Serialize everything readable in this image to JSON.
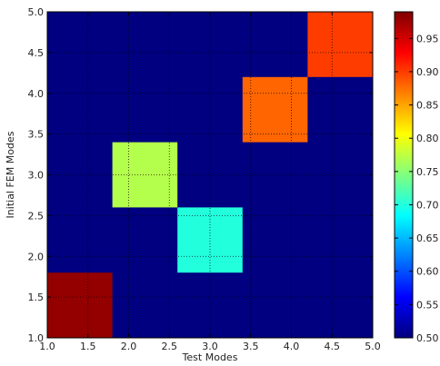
{
  "chart_data": {
    "type": "heatmap",
    "title": "",
    "xlabel": "Test Modes",
    "ylabel": "Initial FEM Modes",
    "xlim": [
      1.0,
      5.0
    ],
    "ylim": [
      1.0,
      5.0
    ],
    "xticks": [
      "1.0",
      "1.5",
      "2.0",
      "2.5",
      "3.0",
      "3.5",
      "4.0",
      "4.5",
      "5.0"
    ],
    "yticks": [
      "1.0",
      "1.5",
      "2.0",
      "2.5",
      "3.0",
      "3.5",
      "4.0",
      "4.5",
      "5.0"
    ],
    "grid": "dotted",
    "background_value": 0.5,
    "cells": [
      {
        "x": [
          1.0,
          1.8
        ],
        "y": [
          1.0,
          1.8
        ],
        "value": 0.98
      },
      {
        "x": [
          2.6,
          3.4
        ],
        "y": [
          1.8,
          2.6
        ],
        "value": 0.7
      },
      {
        "x": [
          1.8,
          2.6
        ],
        "y": [
          2.6,
          3.4
        ],
        "value": 0.77
      },
      {
        "x": [
          3.4,
          4.2
        ],
        "y": [
          3.4,
          4.2
        ],
        "value": 0.88
      },
      {
        "x": [
          4.2,
          5.0
        ],
        "y": [
          4.2,
          5.0
        ],
        "value": 0.9
      }
    ],
    "colorbar": {
      "min": 0.5,
      "max": 0.99,
      "colormap": "jet",
      "ticks": [
        "0.50",
        "0.55",
        "0.60",
        "0.65",
        "0.70",
        "0.75",
        "0.80",
        "0.85",
        "0.90",
        "0.95"
      ]
    }
  }
}
